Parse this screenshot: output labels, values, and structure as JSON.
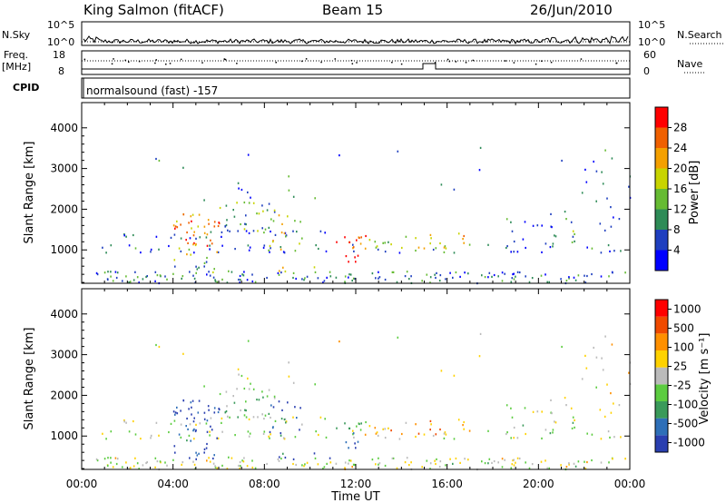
{
  "header": {
    "station": "King Salmon (fitACF)",
    "beam": "Beam 15",
    "date": "26/Jun/2010"
  },
  "strip": {
    "nsky_label": "N.Sky",
    "nsky_ticks": [
      "10^5",
      "10^0"
    ],
    "nsearch_label": "N.Search",
    "nsearch_ticks": [
      "10^5",
      "10^0"
    ],
    "freq_label_1": "Freq.",
    "freq_label_2": "[MHz]",
    "freq_ticks": [
      "18",
      "8"
    ],
    "nave_label": "Nave",
    "nave_ticks": [
      "60",
      "0"
    ],
    "cpid_label": "CPID",
    "cpid_text": "normalsound (fast) -157"
  },
  "chart_data": [
    {
      "type": "heatmap",
      "name": "power",
      "ylabel": "Slant Range [km]",
      "yticks": [
        "4000",
        "3000",
        "2000",
        "1000"
      ],
      "ylim": [
        180,
        4620
      ],
      "xlim_hours": [
        0,
        24
      ],
      "colorbar_label": "Power [dB]",
      "colorbar_ticks": [
        "28",
        "24",
        "20",
        "16",
        "12",
        "8",
        "4"
      ],
      "colors": [
        "#0000ff",
        "#1f3fbf",
        "#2e8b57",
        "#66bb33",
        "#c8d400",
        "#f4a000",
        "#f06000",
        "#ff0000"
      ]
    },
    {
      "type": "heatmap",
      "name": "velocity",
      "ylabel": "Slant Range [km]",
      "yticks": [
        "4000",
        "3000",
        "2000",
        "1000"
      ],
      "ylim": [
        180,
        4620
      ],
      "xlim_hours": [
        0,
        24
      ],
      "xlabel": "Time UT",
      "xticks": [
        "00:00",
        "04:00",
        "08:00",
        "12:00",
        "16:00",
        "20:00",
        "00:00"
      ],
      "colorbar_label": "Velocity [m s⁻¹]",
      "colorbar_ticks": [
        "1000",
        "500",
        "100",
        "25",
        "-25",
        "-100",
        "-500",
        "-1000"
      ],
      "colors": [
        "#2a3fb0",
        "#2e6fb8",
        "#3a9a5a",
        "#5ccc40",
        "#bbbbbb",
        "#ffd200",
        "#ff9000",
        "#f04a00",
        "#ff0000"
      ]
    }
  ]
}
